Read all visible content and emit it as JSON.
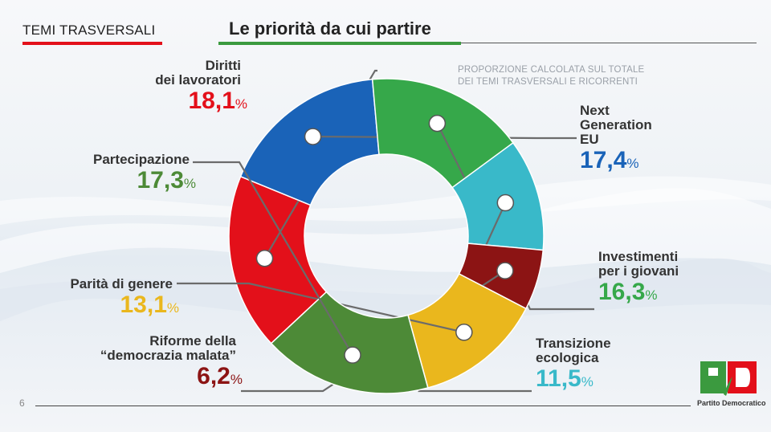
{
  "header": {
    "section": "TEMI TRASVERSALI",
    "title": "Le priorità da cui partire"
  },
  "note": {
    "line1": "PROPORZIONE CALCOLATA SUL TOTALE",
    "line2": "DEI TEMI TRASVERSALI E RICORRENTI"
  },
  "page_number": "6",
  "logo": {
    "letters": "PD",
    "text": "Partito Democratico"
  },
  "colors": {
    "red": "#e3101a",
    "blue": "#1a63b8",
    "green": "#36a84a",
    "cyan": "#39b9c9",
    "darkred": "#8c1414",
    "yellow": "#eab71d",
    "olive": "#4d8a37"
  },
  "chart_data": {
    "type": "pie",
    "title": "Le priorità da cui partire",
    "slices": [
      {
        "name": "Diritti dei lavoratori",
        "label_lines": [
          "Diritti",
          "dei lavoratori"
        ],
        "value": 18.1,
        "display": "18,1",
        "color": "#e3101a"
      },
      {
        "name": "Next Generation EU",
        "label_lines": [
          "Next",
          "Generation",
          "EU"
        ],
        "value": 17.4,
        "display": "17,4",
        "color": "#1a63b8"
      },
      {
        "name": "Investimenti per i giovani",
        "label_lines": [
          "Investimenti",
          "per i giovani"
        ],
        "value": 16.3,
        "display": "16,3",
        "color": "#36a84a"
      },
      {
        "name": "Transizione ecologica",
        "label_lines": [
          "Transizione",
          "ecologica"
        ],
        "value": 11.5,
        "display": "11,5",
        "color": "#39b9c9"
      },
      {
        "name": "Riforme della \"democrazia malata\"",
        "label_lines": [
          "Riforme della",
          "“democrazia malata”"
        ],
        "value": 6.2,
        "display": "6,2",
        "color": "#8c1414"
      },
      {
        "name": "Parità di genere",
        "label_lines": [
          "Parità di genere"
        ],
        "value": 13.1,
        "display": "13,1",
        "color": "#eab71d"
      },
      {
        "name": "Partecipazione",
        "label_lines": [
          "Partecipazione"
        ],
        "value": 17.3,
        "display": "17,3",
        "color": "#4d8a37"
      }
    ],
    "unit": "%",
    "donut": true,
    "legend": "labels-around"
  }
}
